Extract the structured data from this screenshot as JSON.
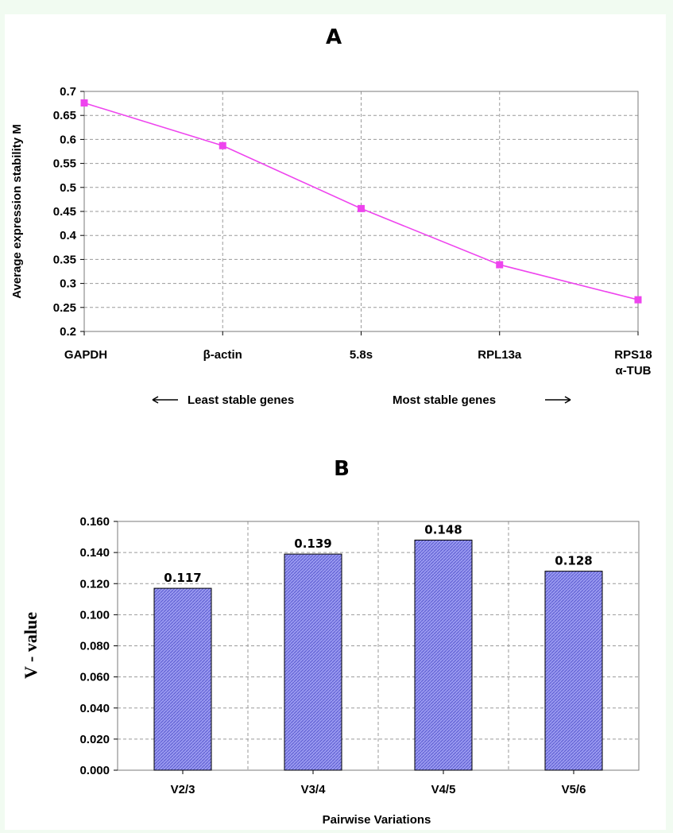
{
  "chart_data": [
    {
      "panel": "A",
      "type": "line",
      "categories": [
        "GAPDH",
        "β-actin",
        "5.8s",
        "RPL13a",
        "RPS18"
      ],
      "extra_category_line": "α-TUB",
      "values": [
        0.676,
        0.587,
        0.456,
        0.339,
        0.266
      ],
      "ylabel": "Average expression stability M",
      "ylim": [
        0.2,
        0.7
      ],
      "yticks": [
        "0.2",
        "0.25",
        "0.3",
        "0.35",
        "0.4",
        "0.45",
        "0.5",
        "0.55",
        "0.6",
        "0.65",
        "0.7"
      ],
      "annotation_left": "Least stable genes",
      "annotation_right": "Most stable genes",
      "grid": true,
      "colors": {
        "line": "#ee44ee",
        "marker": "#ee44ee"
      }
    },
    {
      "panel": "B",
      "type": "bar",
      "categories": [
        "V2/3",
        "V3/4",
        "V4/5",
        "V5/6"
      ],
      "values": [
        0.117,
        0.139,
        0.148,
        0.128
      ],
      "value_labels": [
        "0.117",
        "0.139",
        "0.148",
        "0.128"
      ],
      "xlabel": "Pairwise Variations",
      "ylabel": "V - value",
      "ylim": [
        0,
        0.16
      ],
      "yticks": [
        "0.000",
        "0.020",
        "0.040",
        "0.060",
        "0.080",
        "0.100",
        "0.120",
        "0.140",
        "0.160"
      ],
      "grid": true,
      "colors": {
        "bar": "#8b8be6",
        "bar_edge": "#000000"
      }
    }
  ]
}
